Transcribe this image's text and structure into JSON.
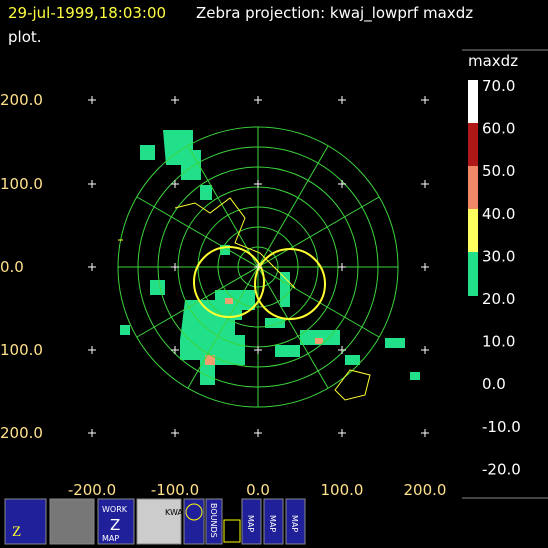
{
  "header": {
    "time": "29-jul-1999,18:03:00",
    "title": "Zebra projection: kwaj_lowprf maxdz",
    "title_cont": "plot."
  },
  "plot": {
    "x_labels": [
      "-200.0",
      "-100.0",
      "0.0",
      "100.0",
      "200.0"
    ],
    "y_labels": [
      "200.0",
      "100.0",
      "0.0",
      "100.0",
      "200.0"
    ]
  },
  "colorbar": {
    "title": "maxdz",
    "labels": [
      "70.0",
      "60.0",
      "50.0",
      "40.0",
      "30.0",
      "20.0",
      "10.0",
      "0.0",
      "-10.0",
      "-20.0"
    ]
  },
  "toolbar": {
    "buttons": [
      {
        "label": "WORK"
      },
      {
        "label": "MAP"
      },
      {
        "label": "KWAJ"
      },
      {
        "label": "BOUNDS"
      },
      {
        "label": "MAP"
      },
      {
        "label": "MAP"
      },
      {
        "label": "MAP"
      }
    ]
  }
}
